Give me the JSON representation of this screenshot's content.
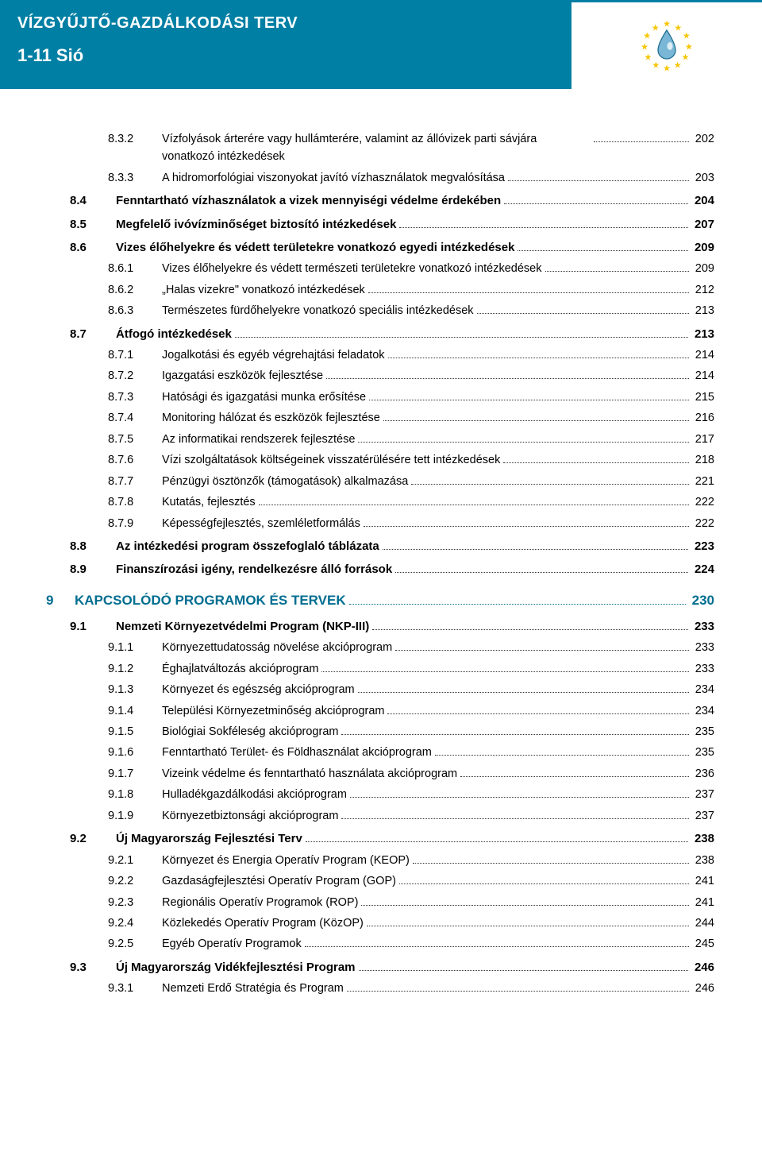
{
  "colors": {
    "header_bg": "#007fa4",
    "chapter": "#006d90",
    "star": "#f6c500",
    "drop_fill": "#7ab7d6",
    "drop_stroke": "#1d6f93"
  },
  "header": {
    "title": "VÍZGYŰJTŐ-GAZDÁLKODÁSI TERV",
    "subtitle": "1-11 Sió"
  },
  "toc": [
    {
      "level": 3,
      "num": "8.3.2",
      "label": "Vízfolyások árterére vagy hullámterére, valamint az állóvizek parti sávjára vonatkozó intézkedések",
      "page": "202",
      "wrap": true
    },
    {
      "level": 3,
      "num": "8.3.3",
      "label": "A hidromorfológiai viszonyokat javító vízhasználatok megvalósítása",
      "page": "203"
    },
    {
      "level": 2,
      "num": "8.4",
      "label": "Fenntartható vízhasználatok a vizek mennyiségi védelme érdekében",
      "page": "204"
    },
    {
      "level": 2,
      "num": "8.5",
      "label": "Megfelelő ivóvízminőséget biztosító intézkedések",
      "page": "207"
    },
    {
      "level": 2,
      "num": "8.6",
      "label": "Vizes élőhelyekre és védett területekre vonatkozó egyedi intézkedések",
      "page": "209"
    },
    {
      "level": 3,
      "num": "8.6.1",
      "label": "Vizes élőhelyekre és védett természeti területekre vonatkozó intézkedések",
      "page": "209"
    },
    {
      "level": 3,
      "num": "8.6.2",
      "label": "„Halas vizekre\" vonatkozó intézkedések",
      "page": "212"
    },
    {
      "level": 3,
      "num": "8.6.3",
      "label": "Természetes fürdőhelyekre vonatkozó speciális intézkedések",
      "page": "213"
    },
    {
      "level": 2,
      "num": "8.7",
      "label": "Átfogó intézkedések",
      "page": "213"
    },
    {
      "level": 3,
      "num": "8.7.1",
      "label": "Jogalkotási és egyéb végrehajtási feladatok",
      "page": "214"
    },
    {
      "level": 3,
      "num": "8.7.2",
      "label": "Igazgatási eszközök fejlesztése",
      "page": "214"
    },
    {
      "level": 3,
      "num": "8.7.3",
      "label": "Hatósági és igazgatási munka erősítése",
      "page": "215"
    },
    {
      "level": 3,
      "num": "8.7.4",
      "label": "Monitoring hálózat és eszközök fejlesztése",
      "page": "216"
    },
    {
      "level": 3,
      "num": "8.7.5",
      "label": "Az informatikai rendszerek fejlesztése",
      "page": "217"
    },
    {
      "level": 3,
      "num": "8.7.6",
      "label": "Vízi szolgáltatások költségeinek visszatérülésére tett intézkedések",
      "page": "218"
    },
    {
      "level": 3,
      "num": "8.7.7",
      "label": "Pénzügyi ösztönzők (támogatások) alkalmazása",
      "page": "221"
    },
    {
      "level": 3,
      "num": "8.7.8",
      "label": "Kutatás, fejlesztés",
      "page": "222"
    },
    {
      "level": 3,
      "num": "8.7.9",
      "label": "Képességfejlesztés, szemléletformálás",
      "page": "222"
    },
    {
      "level": 2,
      "num": "8.8",
      "label": "Az intézkedési program összefoglaló táblázata",
      "page": "223"
    },
    {
      "level": 2,
      "num": "8.9",
      "label": "Finanszírozási igény, rendelkezésre álló források",
      "page": "224"
    },
    {
      "level": 1,
      "num": "9",
      "label": "KAPCSOLÓDÓ PROGRAMOK ÉS TERVEK",
      "page": "230"
    },
    {
      "level": 2,
      "num": "9.1",
      "label": "Nemzeti Környezetvédelmi Program (NKP-III)",
      "page": "233"
    },
    {
      "level": 3,
      "num": "9.1.1",
      "label": "Környezettudatosság növelése akcióprogram",
      "page": "233"
    },
    {
      "level": 3,
      "num": "9.1.2",
      "label": "Éghajlatváltozás akcióprogram",
      "page": "233"
    },
    {
      "level": 3,
      "num": "9.1.3",
      "label": "Környezet és egészség akcióprogram",
      "page": "234"
    },
    {
      "level": 3,
      "num": "9.1.4",
      "label": "Települési Környezetminőség akcióprogram",
      "page": "234"
    },
    {
      "level": 3,
      "num": "9.1.5",
      "label": "Biológiai Sokféleség akcióprogram",
      "page": "235"
    },
    {
      "level": 3,
      "num": "9.1.6",
      "label": "Fenntartható Terület- és Földhasználat akcióprogram",
      "page": "235"
    },
    {
      "level": 3,
      "num": "9.1.7",
      "label": "Vizeink védelme és fenntartható használata akcióprogram",
      "page": "236"
    },
    {
      "level": 3,
      "num": "9.1.8",
      "label": "Hulladékgazdálkodási akcióprogram",
      "page": "237"
    },
    {
      "level": 3,
      "num": "9.1.9",
      "label": "Környezetbiztonsági akcióprogram",
      "page": "237"
    },
    {
      "level": 2,
      "num": "9.2",
      "label": "Új Magyarország Fejlesztési Terv",
      "page": "238"
    },
    {
      "level": 3,
      "num": "9.2.1",
      "label": "Környezet és Energia Operatív Program (KEOP)",
      "page": "238"
    },
    {
      "level": 3,
      "num": "9.2.2",
      "label": "Gazdaságfejlesztési Operatív Program (GOP)",
      "page": "241"
    },
    {
      "level": 3,
      "num": "9.2.3",
      "label": "Regionális Operatív Programok (ROP)",
      "page": "241"
    },
    {
      "level": 3,
      "num": "9.2.4",
      "label": "Közlekedés Operatív Program (KözOP)",
      "page": "244"
    },
    {
      "level": 3,
      "num": "9.2.5",
      "label": "Egyéb Operatív Programok",
      "page": "245"
    },
    {
      "level": 2,
      "num": "9.3",
      "label": "Új Magyarország Vidékfejlesztési Program",
      "page": "246"
    },
    {
      "level": 3,
      "num": "9.3.1",
      "label": "Nemzeti Erdő Stratégia és Program",
      "page": "246"
    }
  ]
}
